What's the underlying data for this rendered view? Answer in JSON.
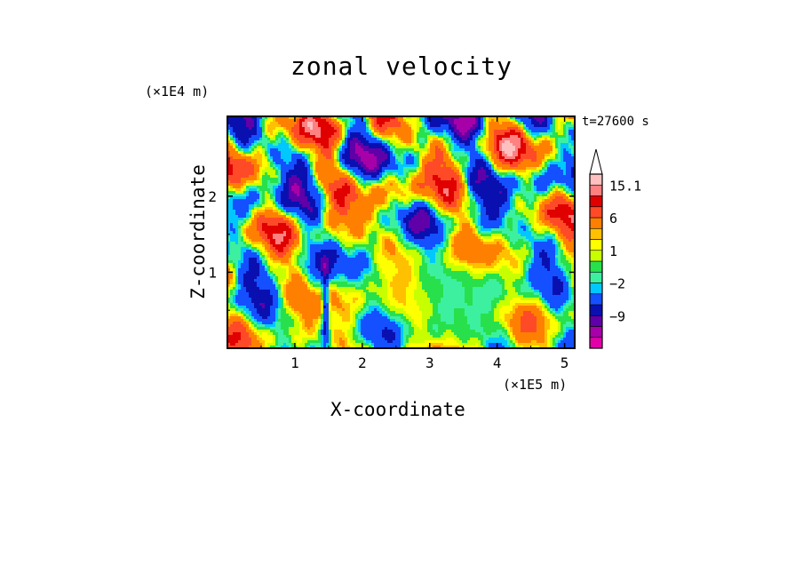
{
  "chart_data": {
    "type": "heatmap",
    "title": "zonal velocity",
    "xlabel": "X-coordinate",
    "ylabel": "Z-coordinate",
    "x_multiplier": "(×1E5 m)",
    "y_multiplier": "(×1E4 m)",
    "time_label": "t=27600 s",
    "xlim": [
      0,
      5.15
    ],
    "ylim": [
      0,
      3.05
    ],
    "x_ticks": [
      {
        "value": 1,
        "label": "1"
      },
      {
        "value": 2,
        "label": "2"
      },
      {
        "value": 3,
        "label": "3"
      },
      {
        "value": 4,
        "label": "4"
      },
      {
        "value": 5,
        "label": "5"
      }
    ],
    "y_ticks": [
      {
        "value": 1,
        "label": "1"
      },
      {
        "value": 2,
        "label": "2"
      }
    ],
    "colorbar": {
      "levels": [
        -15,
        -12,
        -9,
        -6,
        -3,
        -2,
        -1,
        0,
        1,
        2,
        3,
        6,
        9,
        12,
        15.1
      ],
      "colors": [
        "#e100a8",
        "#a800a8",
        "#6000a8",
        "#0a10b0",
        "#1450ff",
        "#00c8ff",
        "#3cf0a0",
        "#28e04c",
        "#c8ff00",
        "#ffff00",
        "#ffc000",
        "#ff8000",
        "#ff4a28",
        "#e00000",
        "#ff8080",
        "#ffc0c0"
      ],
      "tick_labels": [
        {
          "value": 15.1,
          "label": "15.1"
        },
        {
          "value": 6,
          "label": "6"
        },
        {
          "value": 1,
          "label": "1"
        },
        {
          "value": -2,
          "label": "−2"
        },
        {
          "value": -9,
          "label": "−9"
        }
      ],
      "extend_max": true
    }
  }
}
